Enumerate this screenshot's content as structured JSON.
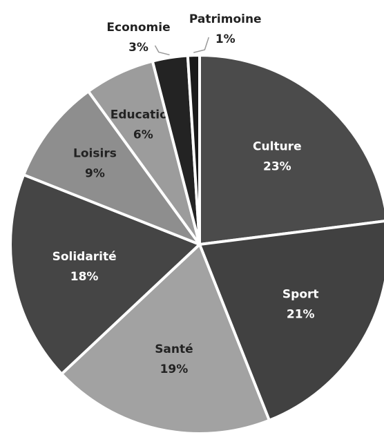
{
  "chart_data": {
    "type": "pie",
    "categories": [
      "Culture",
      "Sport",
      "Santé",
      "Solidarité",
      "Loisirs",
      "Education",
      "Economie",
      "Patrimoine"
    ],
    "values": [
      23,
      21,
      19,
      18,
      9,
      6,
      3,
      1
    ],
    "value_labels": [
      "23%",
      "21%",
      "19%",
      "18%",
      "9%",
      "6%",
      "3%",
      "1%"
    ],
    "colors": [
      "#4b4b4b",
      "#414141",
      "#a2a2a2",
      "#454545",
      "#8e8e8e",
      "#9c9c9c",
      "#232323",
      "#1b1b1b"
    ]
  }
}
